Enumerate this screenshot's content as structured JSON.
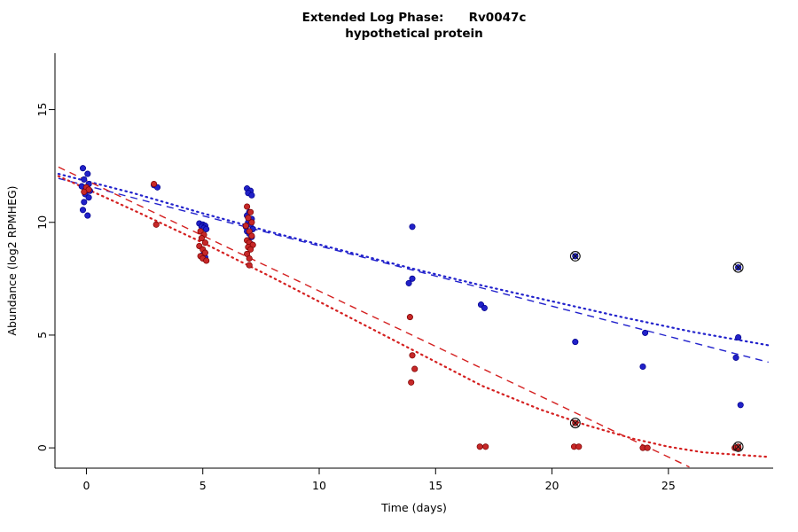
{
  "colors": {
    "background": "#ffffff",
    "axis": "#000000",
    "blue_point": "#2121c8",
    "blue_edge": "#00008b",
    "red_point": "#c62828",
    "red_edge": "#7a0000",
    "blue_line": "#2222cc",
    "red_line": "#d42020",
    "flag_marker": "#111111"
  },
  "chart_data": {
    "type": "scatter",
    "title": "Extended Log Phase:      Rv0047c",
    "subtitle": "hypothetical protein",
    "xlabel": "Time  (days)",
    "ylabel": "Abundance  (log2 RPMHEG)",
    "xlim": [
      -1.35,
      29.5
    ],
    "ylim": [
      -0.9,
      17.5
    ],
    "xticks": [
      0,
      5,
      10,
      15,
      20,
      25
    ],
    "yticks": [
      0,
      5,
      10,
      15
    ],
    "grid": false,
    "legend": "none",
    "series": [
      {
        "name": "blue",
        "points": [
          [
            -0.15,
            12.4
          ],
          [
            0.05,
            12.15
          ],
          [
            -0.1,
            11.9
          ],
          [
            0.1,
            11.7
          ],
          [
            -0.2,
            11.6
          ],
          [
            0.0,
            11.5
          ],
          [
            0.15,
            11.4
          ],
          [
            -0.05,
            11.25
          ],
          [
            0.1,
            11.1
          ],
          [
            -0.1,
            10.9
          ],
          [
            -0.15,
            10.55
          ],
          [
            0.05,
            10.3
          ],
          [
            2.9,
            11.65
          ],
          [
            3.05,
            11.55
          ],
          [
            4.85,
            9.95
          ],
          [
            5.0,
            9.9
          ],
          [
            5.1,
            9.85
          ],
          [
            4.95,
            9.8
          ],
          [
            5.05,
            9.75
          ],
          [
            5.15,
            9.7
          ],
          [
            5.0,
            8.55
          ],
          [
            5.1,
            8.45
          ],
          [
            6.9,
            11.5
          ],
          [
            7.05,
            11.4
          ],
          [
            6.95,
            11.3
          ],
          [
            7.1,
            11.2
          ],
          [
            7.0,
            10.45
          ],
          [
            6.9,
            10.3
          ],
          [
            7.1,
            10.15
          ],
          [
            6.95,
            10.0
          ],
          [
            7.05,
            9.9
          ],
          [
            6.85,
            9.8
          ],
          [
            7.15,
            9.7
          ],
          [
            6.9,
            9.6
          ],
          [
            7.0,
            9.5
          ],
          [
            7.1,
            9.35
          ],
          [
            6.95,
            9.2
          ],
          [
            7.05,
            9.05
          ],
          [
            7.0,
            8.95
          ],
          [
            14.0,
            9.8
          ],
          [
            14.0,
            7.5
          ],
          [
            13.85,
            7.3
          ],
          [
            16.95,
            6.35
          ],
          [
            17.1,
            6.2
          ],
          [
            21.0,
            4.7
          ],
          [
            24.0,
            5.1
          ],
          [
            23.9,
            3.6
          ],
          [
            28.0,
            4.9
          ],
          [
            27.9,
            4.0
          ],
          [
            28.1,
            1.9
          ]
        ],
        "flagged": [
          [
            21.0,
            8.5
          ],
          [
            28.0,
            8.0
          ]
        ]
      },
      {
        "name": "red",
        "points": [
          [
            0.0,
            11.55
          ],
          [
            0.1,
            11.45
          ],
          [
            -0.1,
            11.35
          ],
          [
            2.9,
            11.7
          ],
          [
            3.0,
            9.9
          ],
          [
            4.9,
            9.6
          ],
          [
            5.05,
            9.45
          ],
          [
            4.95,
            9.3
          ],
          [
            5.1,
            9.1
          ],
          [
            4.85,
            8.95
          ],
          [
            5.0,
            8.8
          ],
          [
            5.1,
            8.65
          ],
          [
            4.9,
            8.5
          ],
          [
            5.0,
            8.4
          ],
          [
            5.15,
            8.3
          ],
          [
            6.9,
            10.7
          ],
          [
            7.05,
            10.45
          ],
          [
            6.95,
            10.2
          ],
          [
            7.1,
            10.0
          ],
          [
            6.85,
            9.85
          ],
          [
            7.0,
            9.6
          ],
          [
            7.1,
            9.4
          ],
          [
            6.9,
            9.2
          ],
          [
            7.0,
            9.1
          ],
          [
            7.15,
            9.0
          ],
          [
            6.95,
            8.9
          ],
          [
            7.05,
            8.8
          ],
          [
            6.9,
            8.6
          ],
          [
            7.0,
            8.4
          ],
          [
            7.0,
            8.1
          ],
          [
            13.9,
            5.8
          ],
          [
            14.0,
            4.1
          ],
          [
            14.1,
            3.5
          ],
          [
            13.95,
            2.9
          ],
          [
            16.9,
            0.05
          ],
          [
            17.15,
            0.05
          ],
          [
            20.95,
            0.05
          ],
          [
            21.15,
            0.05
          ],
          [
            23.9,
            0.0
          ],
          [
            24.1,
            0.0
          ],
          [
            27.85,
            0.0
          ],
          [
            28.0,
            0.0
          ]
        ],
        "flagged": [
          [
            21.0,
            1.1
          ],
          [
            28.0,
            0.05
          ]
        ]
      }
    ],
    "fits": [
      {
        "name": "blue-dashed",
        "series": "blue",
        "style": "dashed",
        "points": [
          [
            -1.2,
            11.95
          ],
          [
            29.3,
            3.8
          ]
        ]
      },
      {
        "name": "blue-dotted",
        "series": "blue",
        "style": "dotted",
        "points": [
          [
            -1.2,
            12.15
          ],
          [
            2,
            11.3
          ],
          [
            5,
            10.4
          ],
          [
            8,
            9.55
          ],
          [
            11,
            8.75
          ],
          [
            14,
            7.95
          ],
          [
            17,
            7.2
          ],
          [
            20,
            6.5
          ],
          [
            23,
            5.8
          ],
          [
            26,
            5.15
          ],
          [
            29.3,
            4.55
          ]
        ]
      },
      {
        "name": "red-dashed",
        "series": "red",
        "style": "dashed",
        "points": [
          [
            -1.2,
            12.45
          ],
          [
            25.9,
            -0.85
          ]
        ]
      },
      {
        "name": "red-dotted",
        "series": "red",
        "style": "dotted",
        "points": [
          [
            -1.2,
            12.05
          ],
          [
            2,
            10.55
          ],
          [
            5,
            9.1
          ],
          [
            8,
            7.55
          ],
          [
            11,
            5.95
          ],
          [
            14,
            4.35
          ],
          [
            17,
            2.75
          ],
          [
            19.5,
            1.7
          ],
          [
            21.5,
            1.0
          ],
          [
            23.5,
            0.4
          ],
          [
            25,
            0.05
          ],
          [
            26.5,
            -0.2
          ],
          [
            29.3,
            -0.4
          ]
        ]
      }
    ]
  }
}
